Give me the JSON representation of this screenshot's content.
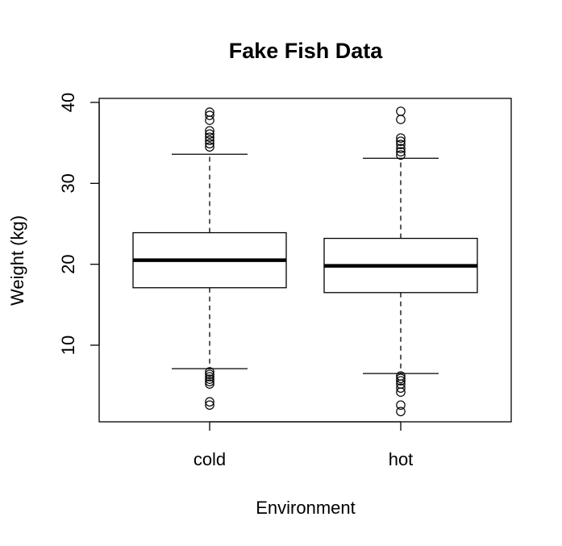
{
  "chart_data": {
    "type": "boxplot",
    "title": "Fake Fish Data",
    "xlabel": "Environment",
    "ylabel": "Weight (kg)",
    "ylim": [
      1,
      40.5
    ],
    "yticks": [
      10,
      20,
      30,
      40
    ],
    "grid": false,
    "legend": "none",
    "categories": [
      "cold",
      "hot"
    ],
    "boxes": [
      {
        "category": "cold",
        "whisker_low": 7.1,
        "q1": 17.1,
        "median": 20.5,
        "q3": 23.9,
        "whisker_high": 33.6,
        "outliers": [
          2.6,
          3.0,
          5.2,
          5.5,
          5.8,
          6.1,
          6.4,
          6.7,
          34.5,
          34.9,
          35.3,
          35.7,
          36.1,
          36.5,
          37.8,
          38.4,
          38.8
        ]
      },
      {
        "category": "hot",
        "whisker_low": 6.5,
        "q1": 16.5,
        "median": 19.8,
        "q3": 23.2,
        "whisker_high": 33.1,
        "outliers": [
          1.8,
          2.6,
          4.2,
          4.7,
          5.2,
          5.6,
          5.9,
          6.2,
          33.5,
          33.9,
          34.3,
          34.8,
          35.2,
          35.6,
          37.9,
          38.9
        ]
      }
    ]
  }
}
